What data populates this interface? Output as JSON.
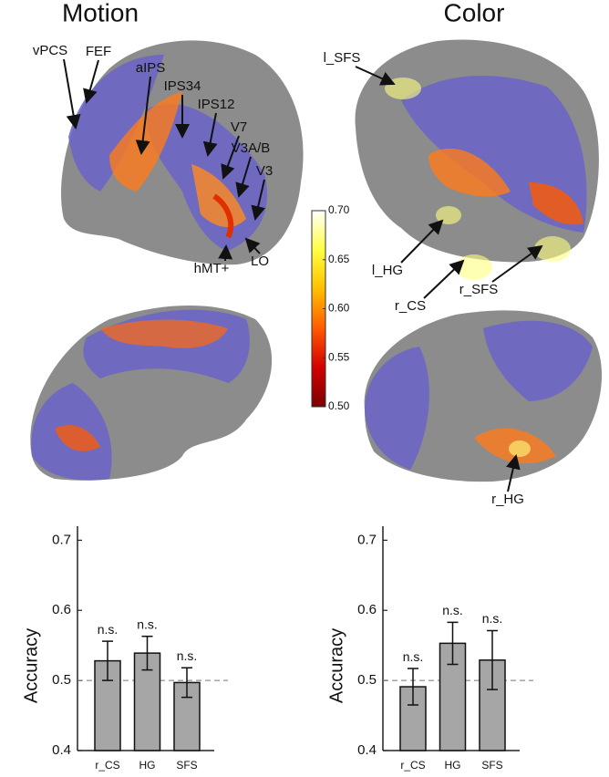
{
  "panels": [
    {
      "title": "Motion",
      "labels": [
        "vPCS",
        "FEF",
        "aIPS",
        "IPS34",
        "IPS12",
        "V7",
        "V3A/B",
        "V3",
        "hMT+",
        "LO"
      ]
    },
    {
      "title": "Color",
      "labels": [
        "l_SFS",
        "l_HG",
        "r_CS",
        "r_SFS",
        "r_HG"
      ]
    }
  ],
  "chart_data": [
    {
      "type": "bar",
      "ylabel": "Accuracy",
      "categories": [
        "r_CS",
        "HG",
        "SFS"
      ],
      "values": [
        0.528,
        0.539,
        0.497
      ],
      "errors": [
        0.028,
        0.024,
        0.021
      ],
      "annotations": [
        "n.s.",
        "n.s.",
        "n.s."
      ],
      "color": "#a6a6a6",
      "ylim": [
        0.4,
        0.72
      ],
      "yticks": [
        0.4,
        0.5,
        0.6,
        0.7
      ],
      "reference_line": 0.5
    },
    {
      "type": "bar",
      "ylabel": "Accuracy",
      "categories": [
        "r_CS",
        "HG",
        "SFS"
      ],
      "values": [
        0.491,
        0.553,
        0.529
      ],
      "errors": [
        0.026,
        0.03,
        0.042
      ],
      "annotations": [
        "n.s.",
        "n.s.",
        "n.s."
      ],
      "color": "#a6a6a6",
      "ylim": [
        0.4,
        0.72
      ],
      "yticks": [
        0.4,
        0.5,
        0.6,
        0.7
      ],
      "reference_line": 0.5
    },
    {
      "type": "colorbar",
      "clim": [
        0.5,
        0.7
      ],
      "colors": [
        "#7a0000",
        "#d40000",
        "#ff5a00",
        "#ffc000",
        "#ffff40",
        "#ffffff"
      ],
      "ticks": [
        {
          "value": 0.5,
          "label": "0.50"
        },
        {
          "value": 0.55,
          "label": "0.55"
        },
        {
          "value": 0.6,
          "label": "0.60"
        },
        {
          "value": 0.65,
          "label": "0.65"
        },
        {
          "value": 0.7,
          "label": "0.70"
        }
      ]
    }
  ]
}
